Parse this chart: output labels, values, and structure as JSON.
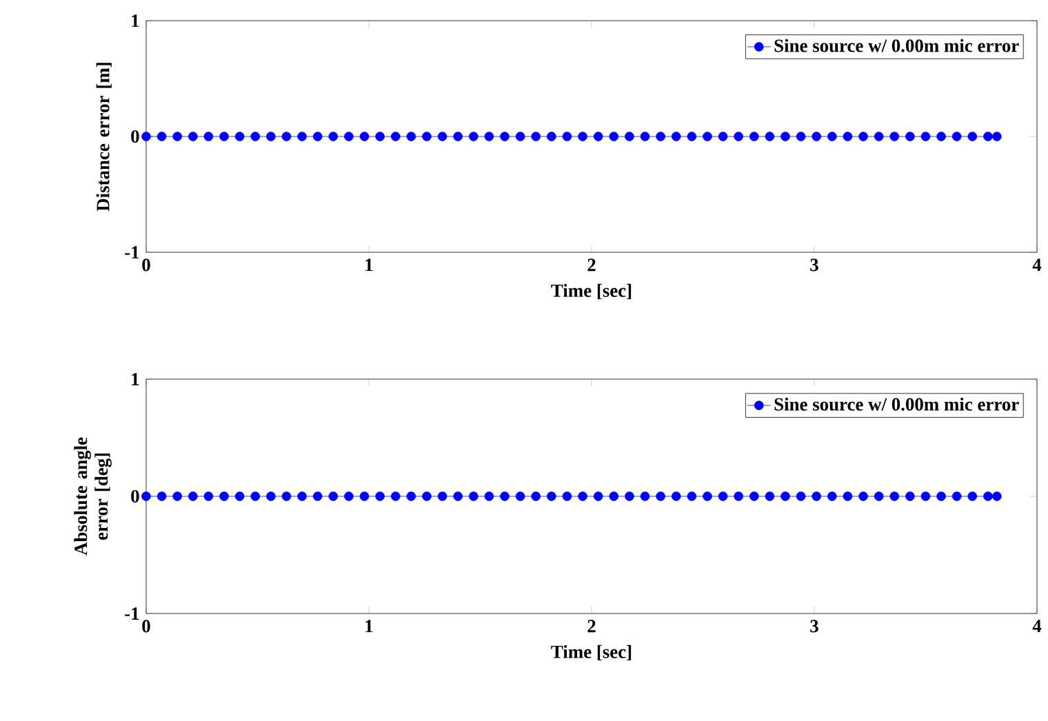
{
  "chart_data": [
    {
      "type": "line",
      "xlabel": "Time [sec]",
      "ylabel": "Distance error [m]",
      "xlim": [
        0,
        4
      ],
      "ylim": [
        -1,
        1
      ],
      "xticks": [
        0,
        1,
        2,
        3,
        4
      ],
      "yticks": [
        -1,
        0,
        1
      ],
      "grid": false,
      "legend": "top right",
      "marker": "circle",
      "line_style": "solid",
      "x": [
        0,
        0.07,
        0.14,
        0.21,
        0.28,
        0.35,
        0.42,
        0.49,
        0.56,
        0.63,
        0.7,
        0.77,
        0.84,
        0.91,
        0.98,
        1.05,
        1.12,
        1.19,
        1.26,
        1.33,
        1.4,
        1.47,
        1.54,
        1.61,
        1.68,
        1.75,
        1.82,
        1.89,
        1.96,
        2.03,
        2.1,
        2.17,
        2.24,
        2.31,
        2.38,
        2.45,
        2.52,
        2.59,
        2.66,
        2.73,
        2.8,
        2.87,
        2.94,
        3.01,
        3.08,
        3.15,
        3.22,
        3.29,
        3.36,
        3.43,
        3.5,
        3.57,
        3.64,
        3.71,
        3.78,
        3.82
      ],
      "series": [
        {
          "name": "Sine source w/ 0.00m mic error",
          "color": "#0000ff",
          "values": [
            0,
            0,
            0,
            0,
            0,
            0,
            0,
            0,
            0,
            0,
            0,
            0,
            0,
            0,
            0,
            0,
            0,
            0,
            0,
            0,
            0,
            0,
            0,
            0,
            0,
            0,
            0,
            0,
            0,
            0,
            0,
            0,
            0,
            0,
            0,
            0,
            0,
            0,
            0,
            0,
            0,
            0,
            0,
            0,
            0,
            0,
            0,
            0,
            0,
            0,
            0,
            0,
            0,
            0,
            0,
            0
          ]
        }
      ]
    },
    {
      "type": "line",
      "xlabel": "Time [sec]",
      "ylabel": "Absolute angle error [deg]",
      "xlim": [
        0,
        4
      ],
      "ylim": [
        -1,
        1
      ],
      "xticks": [
        0,
        1,
        2,
        3,
        4
      ],
      "yticks": [
        -1,
        0,
        1
      ],
      "grid": false,
      "legend": "top right",
      "marker": "circle",
      "line_style": "solid",
      "x": [
        0,
        0.07,
        0.14,
        0.21,
        0.28,
        0.35,
        0.42,
        0.49,
        0.56,
        0.63,
        0.7,
        0.77,
        0.84,
        0.91,
        0.98,
        1.05,
        1.12,
        1.19,
        1.26,
        1.33,
        1.4,
        1.47,
        1.54,
        1.61,
        1.68,
        1.75,
        1.82,
        1.89,
        1.96,
        2.03,
        2.1,
        2.17,
        2.24,
        2.31,
        2.38,
        2.45,
        2.52,
        2.59,
        2.66,
        2.73,
        2.8,
        2.87,
        2.94,
        3.01,
        3.08,
        3.15,
        3.22,
        3.29,
        3.36,
        3.43,
        3.5,
        3.57,
        3.64,
        3.71,
        3.78,
        3.82
      ],
      "series": [
        {
          "name": "Sine source w/ 0.00m mic error",
          "color": "#0000ff",
          "values": [
            0,
            0,
            0,
            0,
            0,
            0,
            0,
            0,
            0,
            0,
            0,
            0,
            0,
            0,
            0,
            0,
            0,
            0,
            0,
            0,
            0,
            0,
            0,
            0,
            0,
            0,
            0,
            0,
            0,
            0,
            0,
            0,
            0,
            0,
            0,
            0,
            0,
            0,
            0,
            0,
            0,
            0,
            0,
            0,
            0,
            0,
            0,
            0,
            0,
            0,
            0,
            0,
            0,
            0,
            0,
            0
          ]
        }
      ]
    }
  ]
}
